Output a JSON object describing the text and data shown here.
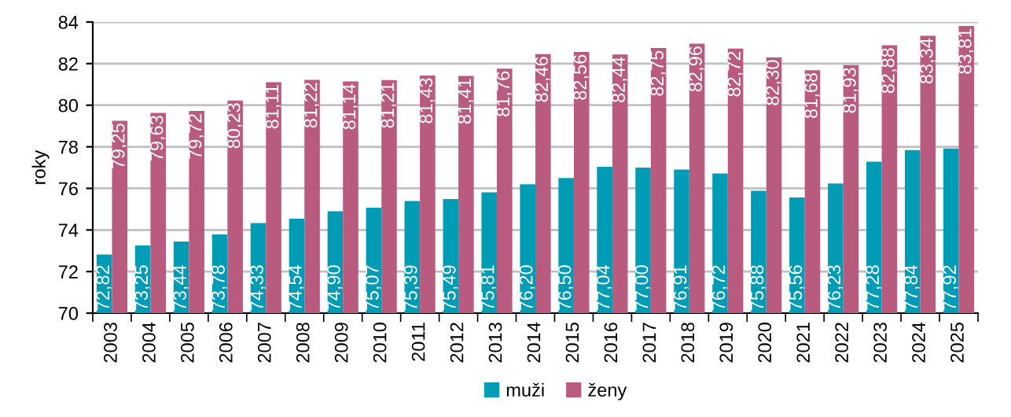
{
  "chart_data": {
    "type": "bar",
    "ylabel": "roky",
    "categories": [
      "2003",
      "2004",
      "2005",
      "2006",
      "2007",
      "2008",
      "2009",
      "2010",
      "2011",
      "2012",
      "2013",
      "2014",
      "2015",
      "2016",
      "2017",
      "2018",
      "2019",
      "2020",
      "2021",
      "2022",
      "2023",
      "2024",
      "2025"
    ],
    "series": [
      {
        "name": "muži",
        "color": "#009cb5",
        "values": [
          72.82,
          73.25,
          73.44,
          73.78,
          74.33,
          74.54,
          74.9,
          75.07,
          75.39,
          75.49,
          75.81,
          76.2,
          76.5,
          77.04,
          77.0,
          76.91,
          76.72,
          75.88,
          75.56,
          76.23,
          77.28,
          77.84,
          77.92
        ],
        "value_labels": [
          "72,82",
          "73,25",
          "73,44",
          "73,78",
          "74,33",
          "74,54",
          "74,90",
          "75,07",
          "75,39",
          "75,49",
          "75,81",
          "76,20",
          "76,50",
          "77,04",
          "77,00",
          "76,91",
          "76,72",
          "75,88",
          "75,56",
          "76,23",
          "77,28",
          "77,84",
          "77,92"
        ]
      },
      {
        "name": "ženy",
        "color": "#b95b7e",
        "values": [
          79.25,
          79.63,
          79.72,
          80.23,
          81.11,
          81.22,
          81.14,
          81.21,
          81.43,
          81.41,
          81.76,
          82.46,
          82.56,
          82.44,
          82.75,
          82.96,
          82.72,
          82.3,
          81.68,
          81.93,
          82.88,
          83.34,
          83.81
        ],
        "value_labels": [
          "79,25",
          "79,63",
          "79,72",
          "80,23",
          "81,11",
          "81,22",
          "81,14",
          "81,21",
          "81,43",
          "81,41",
          "81,76",
          "82,46",
          "82,56",
          "82,44",
          "82,75",
          "82,96",
          "82,72",
          "82,30",
          "81,68",
          "81,93",
          "82,88",
          "83,34",
          "83,81"
        ]
      }
    ],
    "ylim": [
      70,
      84
    ],
    "yticks": [
      70,
      72,
      74,
      76,
      78,
      80,
      82,
      84
    ],
    "grid": "y",
    "legend": "bottom"
  }
}
